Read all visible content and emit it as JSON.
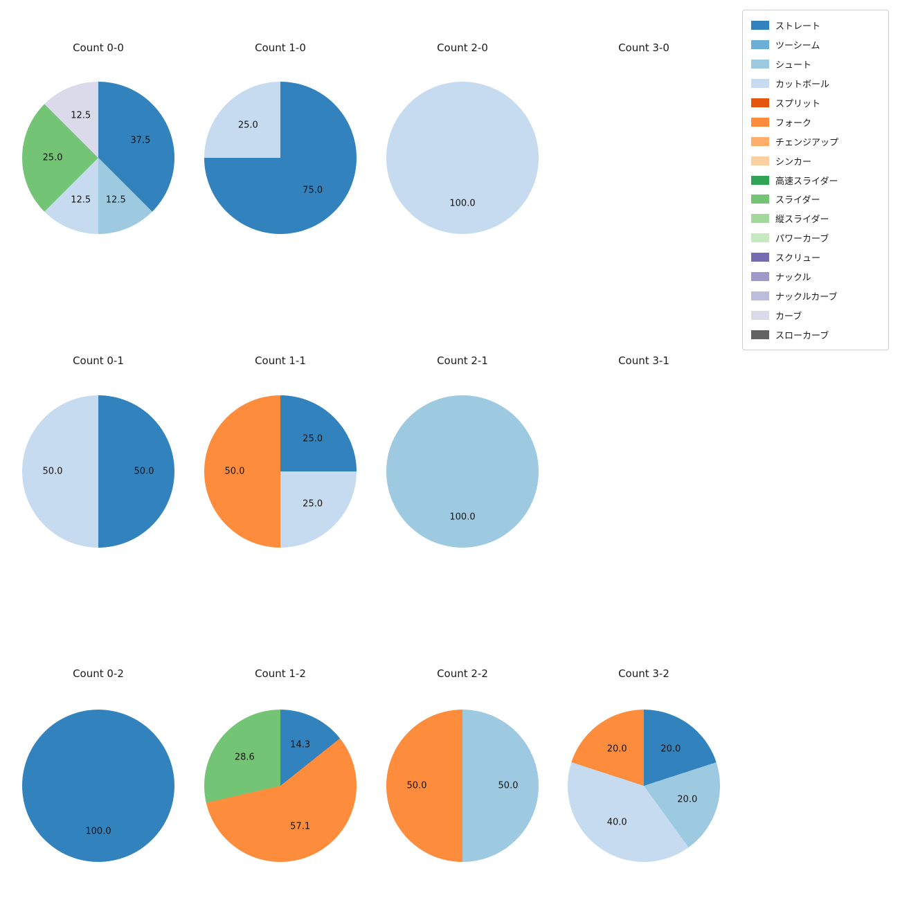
{
  "legend": {
    "items": [
      {
        "label": "ストレート",
        "color": "#3182bd"
      },
      {
        "label": "ツーシーム",
        "color": "#6baed6"
      },
      {
        "label": "シュート",
        "color": "#9ecae1"
      },
      {
        "label": "カットボール",
        "color": "#c6dbef"
      },
      {
        "label": "スプリット",
        "color": "#e6550d"
      },
      {
        "label": "フォーク",
        "color": "#fd8d3c"
      },
      {
        "label": "チェンジアップ",
        "color": "#fdae6b"
      },
      {
        "label": "シンカー",
        "color": "#fdd0a2"
      },
      {
        "label": "高速スライダー",
        "color": "#31a354"
      },
      {
        "label": "スライダー",
        "color": "#74c476"
      },
      {
        "label": "縦スライダー",
        "color": "#a1d99b"
      },
      {
        "label": "パワーカーブ",
        "color": "#c7e9c0"
      },
      {
        "label": "スクリュー",
        "color": "#756bb1"
      },
      {
        "label": "ナックル",
        "color": "#9e9ac8"
      },
      {
        "label": "ナックルカーブ",
        "color": "#bcbddc"
      },
      {
        "label": "カーブ",
        "color": "#dadaeb"
      },
      {
        "label": "スローカーブ",
        "color": "#636363"
      }
    ]
  },
  "chart_data": [
    {
      "type": "pie",
      "title": "Count 0-0",
      "start_angle_deg": 0,
      "clockwise": true,
      "slices": [
        {
          "label": "ストレート",
          "value": 37.5,
          "color": "#3182bd"
        },
        {
          "label": "シュート",
          "value": 12.5,
          "color": "#9ecae1"
        },
        {
          "label": "カットボール",
          "value": 12.5,
          "color": "#c6dbef"
        },
        {
          "label": "スライダー",
          "value": 25.0,
          "color": "#74c476"
        },
        {
          "label": "カーブ",
          "value": 12.5,
          "color": "#dadaeb"
        }
      ]
    },
    {
      "type": "pie",
      "title": "Count 1-0",
      "start_angle_deg": 0,
      "clockwise": true,
      "slices": [
        {
          "label": "ストレート",
          "value": 75.0,
          "color": "#3182bd"
        },
        {
          "label": "カットボール",
          "value": 25.0,
          "color": "#c6dbef"
        }
      ]
    },
    {
      "type": "pie",
      "title": "Count 2-0",
      "start_angle_deg": 0,
      "clockwise": true,
      "slices": [
        {
          "label": "カットボール",
          "value": 100.0,
          "color": "#c6dbef"
        }
      ]
    },
    {
      "type": "pie",
      "title": "Count 3-0",
      "slices": []
    },
    {
      "type": "pie",
      "title": "Count 0-1",
      "start_angle_deg": 0,
      "clockwise": true,
      "slices": [
        {
          "label": "ストレート",
          "value": 50.0,
          "color": "#3182bd"
        },
        {
          "label": "カットボール",
          "value": 50.0,
          "color": "#c6dbef"
        }
      ]
    },
    {
      "type": "pie",
      "title": "Count 1-1",
      "start_angle_deg": 0,
      "clockwise": true,
      "slices": [
        {
          "label": "ストレート",
          "value": 25.0,
          "color": "#3182bd"
        },
        {
          "label": "カットボール",
          "value": 25.0,
          "color": "#c6dbef"
        },
        {
          "label": "フォーク",
          "value": 50.0,
          "color": "#fd8d3c"
        }
      ]
    },
    {
      "type": "pie",
      "title": "Count 2-1",
      "start_angle_deg": 0,
      "clockwise": true,
      "slices": [
        {
          "label": "シュート",
          "value": 100.0,
          "color": "#9ecae1"
        }
      ]
    },
    {
      "type": "pie",
      "title": "Count 3-1",
      "slices": []
    },
    {
      "type": "pie",
      "title": "Count 0-2",
      "start_angle_deg": 0,
      "clockwise": true,
      "slices": [
        {
          "label": "ストレート",
          "value": 100.0,
          "color": "#3182bd"
        }
      ]
    },
    {
      "type": "pie",
      "title": "Count 1-2",
      "start_angle_deg": 0,
      "clockwise": true,
      "slices": [
        {
          "label": "ストレート",
          "value": 14.3,
          "color": "#3182bd"
        },
        {
          "label": "フォーク",
          "value": 57.1,
          "color": "#fd8d3c"
        },
        {
          "label": "スライダー",
          "value": 28.6,
          "color": "#74c476"
        }
      ]
    },
    {
      "type": "pie",
      "title": "Count 2-2",
      "start_angle_deg": 0,
      "clockwise": true,
      "slices": [
        {
          "label": "シュート",
          "value": 50.0,
          "color": "#9ecae1"
        },
        {
          "label": "フォーク",
          "value": 50.0,
          "color": "#fd8d3c"
        }
      ]
    },
    {
      "type": "pie",
      "title": "Count 3-2",
      "start_angle_deg": 0,
      "clockwise": true,
      "slices": [
        {
          "label": "ストレート",
          "value": 20.0,
          "color": "#3182bd"
        },
        {
          "label": "シュート",
          "value": 20.0,
          "color": "#9ecae1"
        },
        {
          "label": "カットボール",
          "value": 40.0,
          "color": "#c6dbef"
        },
        {
          "label": "フォーク",
          "value": 20.0,
          "color": "#fd8d3c"
        }
      ]
    }
  ]
}
